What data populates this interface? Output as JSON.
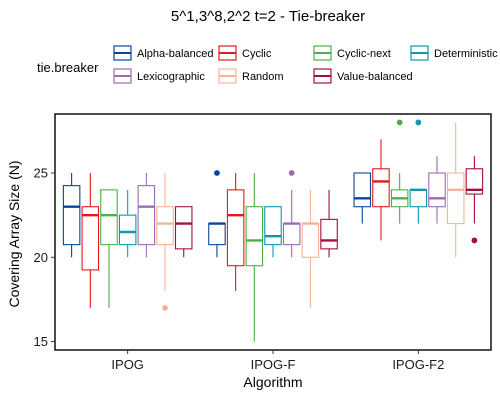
{
  "chart_data": {
    "type": "boxplot",
    "title": "5^1,3^8,2^2 t=2 - Tie-breaker",
    "xlabel": "Algorithm",
    "ylabel": "Covering Array Size (N)",
    "ylim": [
      14.5,
      28.5
    ],
    "yticks": [
      15,
      20,
      25
    ],
    "grid": false,
    "legend_title": "tie.breaker",
    "legend_position": "top",
    "categories": [
      "IPOG",
      "IPOG-F",
      "IPOG-F2"
    ],
    "series": [
      {
        "name": "Alpha-balanced",
        "color": "#08469a",
        "boxes": [
          {
            "min": 20,
            "q1": 20.75,
            "median": 23,
            "q3": 24.25,
            "max": 25,
            "outliers": []
          },
          {
            "min": 20,
            "q1": 20.75,
            "median": 22,
            "q3": 22,
            "max": 22,
            "outliers": [
              25
            ]
          },
          {
            "min": 22,
            "q1": 23,
            "median": 23.5,
            "q3": 25,
            "max": 25,
            "outliers": []
          }
        ]
      },
      {
        "name": "Cyclic",
        "color": "#e31a1c",
        "boxes": [
          {
            "min": 17,
            "q1": 19.25,
            "median": 22.5,
            "q3": 23,
            "max": 25,
            "outliers": []
          },
          {
            "min": 18,
            "q1": 19.5,
            "median": 22.5,
            "q3": 24,
            "max": 25,
            "outliers": []
          },
          {
            "min": 21,
            "q1": 23,
            "median": 24.5,
            "q3": 25.25,
            "max": 27,
            "outliers": []
          }
        ]
      },
      {
        "name": "Cyclic-next",
        "color": "#4daf4a",
        "boxes": [
          {
            "min": 17,
            "q1": 20.75,
            "median": 22.5,
            "q3": 24,
            "max": 24,
            "outliers": []
          },
          {
            "min": 15,
            "q1": 19.5,
            "median": 21,
            "q3": 23,
            "max": 25,
            "outliers": []
          },
          {
            "min": 22,
            "q1": 23,
            "median": 23.5,
            "q3": 24,
            "max": 25,
            "outliers": [
              28
            ]
          }
        ]
      },
      {
        "name": "Deterministic",
        "color": "#0a9ab0",
        "boxes": [
          {
            "min": 20,
            "q1": 20.75,
            "median": 21.5,
            "q3": 22.5,
            "max": 24,
            "outliers": []
          },
          {
            "min": 20,
            "q1": 20.75,
            "median": 21.25,
            "q3": 23,
            "max": 23,
            "outliers": []
          },
          {
            "min": 22,
            "q1": 23,
            "median": 24,
            "q3": 24,
            "max": 24,
            "outliers": [
              28
            ]
          }
        ]
      },
      {
        "name": "Lexicographic",
        "color": "#9c6bb5",
        "boxes": [
          {
            "min": 20,
            "q1": 20.75,
            "median": 23,
            "q3": 24.25,
            "max": 25,
            "outliers": []
          },
          {
            "min": 20,
            "q1": 20.75,
            "median": 22,
            "q3": 22,
            "max": 24,
            "outliers": [
              25
            ]
          },
          {
            "min": 22,
            "q1": 23,
            "median": 23.5,
            "q3": 25,
            "max": 26,
            "outliers": []
          }
        ]
      },
      {
        "name": "Random",
        "color": "#f7b294",
        "boxes": [
          {
            "min": 18,
            "q1": 20.75,
            "median": 22,
            "q3": 23,
            "max": 25,
            "outliers": [
              17
            ]
          },
          {
            "min": 17,
            "q1": 20,
            "median": 22,
            "q3": 22,
            "max": 24,
            "outliers": []
          },
          {
            "min": 20,
            "q1": 22,
            "median": 24,
            "q3": 25,
            "max": 28,
            "outliers": []
          }
        ]
      },
      {
        "name": "Value-balanced",
        "color": "#a50f3c",
        "boxes": [
          {
            "min": 20,
            "q1": 20.5,
            "median": 22,
            "q3": 23,
            "max": 23,
            "outliers": []
          },
          {
            "min": 20,
            "q1": 20.5,
            "median": 21,
            "q3": 22.25,
            "max": 24,
            "outliers": []
          },
          {
            "min": 22,
            "q1": 23.75,
            "median": 24,
            "q3": 25.25,
            "max": 26,
            "outliers": [
              21
            ]
          }
        ]
      }
    ]
  }
}
